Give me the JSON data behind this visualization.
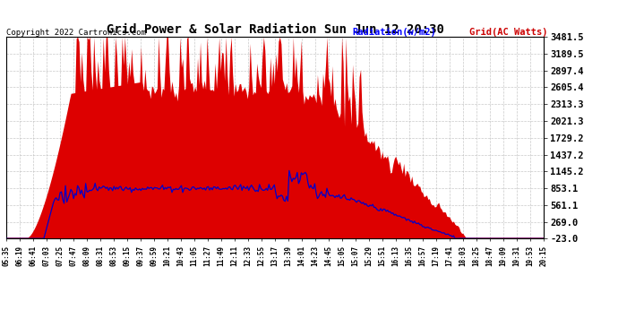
{
  "title": "Grid Power & Solar Radiation Sun Jun 12 20:30",
  "copyright": "Copyright 2022 Cartronics.com",
  "legend_radiation": "Radiation(w/m2)",
  "legend_grid": "Grid(AC Watts)",
  "yticks": [
    3481.5,
    3189.5,
    2897.4,
    2605.4,
    2313.3,
    2021.3,
    1729.2,
    1437.2,
    1145.2,
    853.1,
    561.1,
    269.0,
    -23.0
  ],
  "ymin": -23.0,
  "ymax": 3481.5,
  "background_color": "#ffffff",
  "plot_bg_color": "#ffffff",
  "grid_color": "#aaaaaa",
  "radiation_color": "#dd0000",
  "grid_power_color": "#0000cc",
  "title_color": "#000000",
  "copyright_color": "#000000",
  "legend_radiation_color": "#0000ff",
  "legend_grid_color": "#cc0000",
  "time_labels": [
    "05:35",
    "06:19",
    "06:41",
    "07:03",
    "07:25",
    "07:47",
    "08:09",
    "08:31",
    "08:53",
    "09:15",
    "09:37",
    "09:59",
    "10:21",
    "10:43",
    "11:05",
    "11:27",
    "11:49",
    "12:11",
    "12:33",
    "12:55",
    "13:17",
    "13:39",
    "14:01",
    "14:23",
    "14:45",
    "15:05",
    "15:07",
    "15:29",
    "15:51",
    "16:13",
    "16:35",
    "16:57",
    "17:19",
    "17:41",
    "18:03",
    "18:25",
    "18:47",
    "19:09",
    "19:31",
    "19:53",
    "20:15"
  ]
}
